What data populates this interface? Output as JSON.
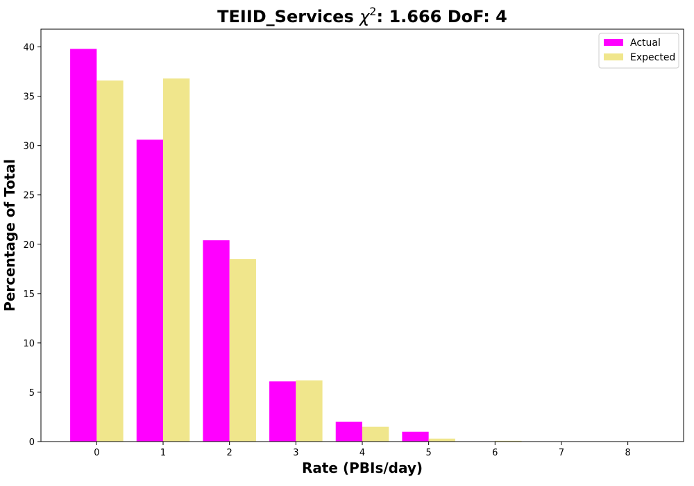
{
  "chart_data": {
    "type": "bar",
    "title_prefix": "TEIID_Services ",
    "title_chi": "χ",
    "title_exp": "2",
    "title_suffix": ": 1.666 DoF: 4",
    "xlabel": "Rate (PBIs/day)",
    "ylabel": "Percentage of Total",
    "categories": [
      "0",
      "1",
      "2",
      "3",
      "4",
      "5",
      "6",
      "7",
      "8"
    ],
    "x": [
      0,
      1,
      2,
      3,
      4,
      5,
      6,
      7,
      8
    ],
    "series": [
      {
        "name": "Actual",
        "color": "#ff00ff",
        "values": [
          39.8,
          30.6,
          20.4,
          6.1,
          2.0,
          1.0,
          0,
          0,
          0
        ]
      },
      {
        "name": "Expected",
        "color": "#f0e68c",
        "values": [
          36.6,
          36.8,
          18.5,
          6.2,
          1.5,
          0.3,
          0.08,
          0,
          0
        ]
      }
    ],
    "xlim": [
      -0.84,
      8.84
    ],
    "ylim": [
      0,
      41.8
    ],
    "yticks": [
      0,
      5,
      10,
      15,
      20,
      25,
      30,
      35,
      40
    ],
    "legend_position": "top-right",
    "grid": false
  }
}
